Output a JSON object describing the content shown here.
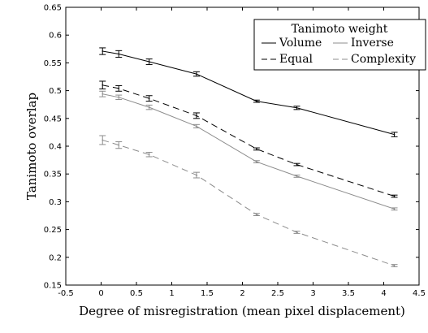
{
  "chart_data": {
    "type": "line",
    "title": "",
    "xlabel": "Degree of misregistration (mean pixel displacement)",
    "ylabel": "Tanimoto overlap",
    "xlim": [
      -0.5,
      4.5
    ],
    "ylim": [
      0.15,
      0.65
    ],
    "x_ticks": [
      "-0.5",
      "0",
      "0.5",
      "1",
      "1.5",
      "2",
      "2.5",
      "3",
      "3.5",
      "4",
      "4.5"
    ],
    "y_ticks": [
      "0.15",
      "0.2",
      "0.25",
      "0.3",
      "0.35",
      "0.4",
      "0.45",
      "0.5",
      "0.55",
      "0.6",
      "0.65"
    ],
    "grid": false,
    "legend": {
      "title": "Tanimoto weight",
      "position": "top-right"
    },
    "x": [
      0.02,
      0.25,
      0.68,
      1.35,
      2.2,
      2.77,
      4.15
    ],
    "series": [
      {
        "name": "Volume",
        "color": "#000000",
        "dash": "solid",
        "values": [
          0.571,
          0.566,
          0.552,
          0.53,
          0.481,
          0.469,
          0.421
        ],
        "errors": [
          0.006,
          0.006,
          0.005,
          0.004,
          0.002,
          0.003,
          0.004
        ]
      },
      {
        "name": "Inverse",
        "color": "#8c8c8c",
        "dash": "solid",
        "values": [
          0.494,
          0.488,
          0.47,
          0.436,
          0.372,
          0.346,
          0.287
        ],
        "errors": [
          0.005,
          0.004,
          0.004,
          0.003,
          0.002,
          0.002,
          0.002
        ]
      },
      {
        "name": "Equal",
        "color": "#000000",
        "dash": "dashed",
        "values": [
          0.51,
          0.504,
          0.486,
          0.455,
          0.395,
          0.367,
          0.31
        ],
        "errors": [
          0.007,
          0.005,
          0.005,
          0.005,
          0.002,
          0.002,
          0.002
        ]
      },
      {
        "name": "Complexity",
        "color": "#8c8c8c",
        "dash": "dashed",
        "values": [
          0.411,
          0.402,
          0.385,
          0.348,
          0.277,
          0.245,
          0.185
        ],
        "errors": [
          0.008,
          0.006,
          0.004,
          0.005,
          0.002,
          0.002,
          0.002
        ]
      }
    ]
  }
}
